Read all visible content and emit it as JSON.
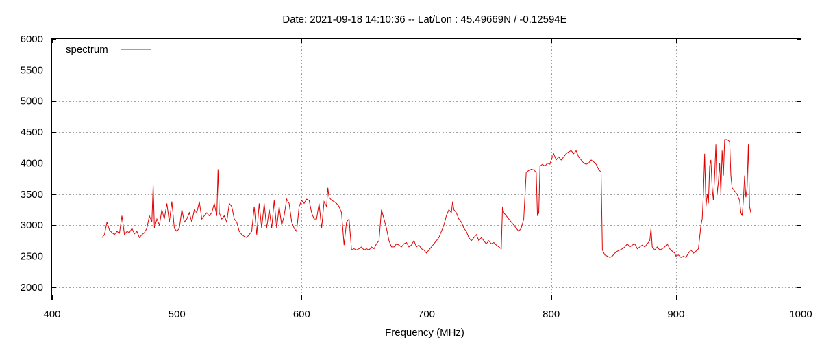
{
  "chart_data": {
    "type": "line",
    "title": "Date: 2021-09-18 14:10:36  --  Lat/Lon : 45.49669N / -0.12594E",
    "xlabel": "Frequency (MHz)",
    "ylabel": "",
    "xlim": [
      400,
      1000
    ],
    "ylim": [
      1800,
      6000
    ],
    "xticks": [
      400,
      500,
      600,
      700,
      800,
      900,
      1000
    ],
    "yticks": [
      2000,
      2500,
      3000,
      3500,
      4000,
      4500,
      5000,
      5500,
      6000
    ],
    "grid": true,
    "legend_position": "top-left",
    "colors": {
      "spectrum": "#e00000"
    },
    "series": [
      {
        "name": "spectrum",
        "points": [
          [
            440,
            2800
          ],
          [
            442,
            2850
          ],
          [
            444,
            3050
          ],
          [
            446,
            2920
          ],
          [
            448,
            2880
          ],
          [
            450,
            2850
          ],
          [
            452,
            2900
          ],
          [
            454,
            2870
          ],
          [
            456,
            3150
          ],
          [
            458,
            2850
          ],
          [
            460,
            2900
          ],
          [
            462,
            2880
          ],
          [
            464,
            2950
          ],
          [
            466,
            2860
          ],
          [
            468,
            2900
          ],
          [
            470,
            2800
          ],
          [
            472,
            2850
          ],
          [
            474,
            2880
          ],
          [
            476,
            2950
          ],
          [
            478,
            3150
          ],
          [
            480,
            3050
          ],
          [
            481,
            3650
          ],
          [
            482,
            2950
          ],
          [
            484,
            3100
          ],
          [
            486,
            3000
          ],
          [
            488,
            3250
          ],
          [
            490,
            3100
          ],
          [
            492,
            3350
          ],
          [
            494,
            3050
          ],
          [
            496,
            3380
          ],
          [
            498,
            2950
          ],
          [
            500,
            2900
          ],
          [
            502,
            2950
          ],
          [
            504,
            3250
          ],
          [
            506,
            3050
          ],
          [
            508,
            3100
          ],
          [
            510,
            3200
          ],
          [
            512,
            3050
          ],
          [
            514,
            3250
          ],
          [
            516,
            3200
          ],
          [
            518,
            3380
          ],
          [
            520,
            3100
          ],
          [
            522,
            3150
          ],
          [
            524,
            3200
          ],
          [
            526,
            3150
          ],
          [
            528,
            3200
          ],
          [
            530,
            3350
          ],
          [
            532,
            3150
          ],
          [
            533,
            3900
          ],
          [
            534,
            3200
          ],
          [
            536,
            3100
          ],
          [
            538,
            3150
          ],
          [
            540,
            3050
          ],
          [
            542,
            3350
          ],
          [
            544,
            3300
          ],
          [
            546,
            3100
          ],
          [
            548,
            3050
          ],
          [
            550,
            2900
          ],
          [
            552,
            2850
          ],
          [
            554,
            2820
          ],
          [
            556,
            2800
          ],
          [
            558,
            2850
          ],
          [
            560,
            2900
          ],
          [
            562,
            3300
          ],
          [
            564,
            2850
          ],
          [
            566,
            3350
          ],
          [
            568,
            2950
          ],
          [
            570,
            3350
          ],
          [
            572,
            2950
          ],
          [
            574,
            3250
          ],
          [
            576,
            2950
          ],
          [
            578,
            3400
          ],
          [
            580,
            2950
          ],
          [
            582,
            3300
          ],
          [
            584,
            3000
          ],
          [
            586,
            3150
          ],
          [
            588,
            3420
          ],
          [
            590,
            3350
          ],
          [
            592,
            3050
          ],
          [
            594,
            2950
          ],
          [
            596,
            2900
          ],
          [
            598,
            3300
          ],
          [
            600,
            3400
          ],
          [
            602,
            3350
          ],
          [
            604,
            3420
          ],
          [
            606,
            3400
          ],
          [
            608,
            3200
          ],
          [
            610,
            3100
          ],
          [
            612,
            3100
          ],
          [
            614,
            3350
          ],
          [
            616,
            2950
          ],
          [
            618,
            3380
          ],
          [
            620,
            3300
          ],
          [
            621,
            3600
          ],
          [
            622,
            3450
          ],
          [
            624,
            3400
          ],
          [
            626,
            3380
          ],
          [
            628,
            3350
          ],
          [
            630,
            3300
          ],
          [
            632,
            3200
          ],
          [
            634,
            2680
          ],
          [
            636,
            3050
          ],
          [
            638,
            3100
          ],
          [
            640,
            2600
          ],
          [
            642,
            2620
          ],
          [
            644,
            2600
          ],
          [
            646,
            2620
          ],
          [
            648,
            2650
          ],
          [
            650,
            2600
          ],
          [
            652,
            2620
          ],
          [
            654,
            2600
          ],
          [
            656,
            2650
          ],
          [
            658,
            2620
          ],
          [
            660,
            2700
          ],
          [
            662,
            2750
          ],
          [
            664,
            3250
          ],
          [
            666,
            3100
          ],
          [
            668,
            2950
          ],
          [
            670,
            2750
          ],
          [
            672,
            2650
          ],
          [
            674,
            2650
          ],
          [
            676,
            2700
          ],
          [
            678,
            2680
          ],
          [
            680,
            2650
          ],
          [
            682,
            2700
          ],
          [
            684,
            2720
          ],
          [
            686,
            2650
          ],
          [
            688,
            2680
          ],
          [
            690,
            2750
          ],
          [
            692,
            2650
          ],
          [
            694,
            2680
          ],
          [
            696,
            2620
          ],
          [
            698,
            2600
          ],
          [
            700,
            2550
          ],
          [
            702,
            2600
          ],
          [
            704,
            2650
          ],
          [
            706,
            2700
          ],
          [
            708,
            2750
          ],
          [
            710,
            2800
          ],
          [
            712,
            2900
          ],
          [
            714,
            3000
          ],
          [
            716,
            3150
          ],
          [
            718,
            3250
          ],
          [
            720,
            3200
          ],
          [
            721,
            3380
          ],
          [
            722,
            3250
          ],
          [
            724,
            3200
          ],
          [
            726,
            3100
          ],
          [
            728,
            3050
          ],
          [
            730,
            2950
          ],
          [
            732,
            2900
          ],
          [
            734,
            2800
          ],
          [
            736,
            2750
          ],
          [
            738,
            2800
          ],
          [
            740,
            2850
          ],
          [
            742,
            2750
          ],
          [
            744,
            2800
          ],
          [
            746,
            2750
          ],
          [
            748,
            2700
          ],
          [
            750,
            2750
          ],
          [
            752,
            2700
          ],
          [
            754,
            2720
          ],
          [
            756,
            2680
          ],
          [
            758,
            2650
          ],
          [
            760,
            2620
          ],
          [
            761,
            3300
          ],
          [
            762,
            3200
          ],
          [
            764,
            3150
          ],
          [
            766,
            3100
          ],
          [
            768,
            3050
          ],
          [
            770,
            3000
          ],
          [
            772,
            2950
          ],
          [
            774,
            2900
          ],
          [
            776,
            2950
          ],
          [
            778,
            3100
          ],
          [
            780,
            3850
          ],
          [
            782,
            3880
          ],
          [
            784,
            3900
          ],
          [
            786,
            3890
          ],
          [
            788,
            3850
          ],
          [
            789,
            3150
          ],
          [
            790,
            3200
          ],
          [
            791,
            3950
          ],
          [
            793,
            3980
          ],
          [
            795,
            3950
          ],
          [
            797,
            4000
          ],
          [
            799,
            3980
          ],
          [
            800,
            4050
          ],
          [
            802,
            4150
          ],
          [
            804,
            4050
          ],
          [
            806,
            4100
          ],
          [
            808,
            4050
          ],
          [
            810,
            4100
          ],
          [
            812,
            4150
          ],
          [
            814,
            4180
          ],
          [
            816,
            4200
          ],
          [
            818,
            4150
          ],
          [
            820,
            4200
          ],
          [
            822,
            4100
          ],
          [
            824,
            4050
          ],
          [
            826,
            4000
          ],
          [
            828,
            3980
          ],
          [
            830,
            4000
          ],
          [
            832,
            4050
          ],
          [
            834,
            4020
          ],
          [
            836,
            3980
          ],
          [
            838,
            3900
          ],
          [
            840,
            3850
          ],
          [
            841,
            2600
          ],
          [
            843,
            2520
          ],
          [
            845,
            2500
          ],
          [
            847,
            2480
          ],
          [
            849,
            2500
          ],
          [
            851,
            2550
          ],
          [
            853,
            2580
          ],
          [
            855,
            2600
          ],
          [
            857,
            2620
          ],
          [
            859,
            2650
          ],
          [
            861,
            2700
          ],
          [
            863,
            2650
          ],
          [
            865,
            2680
          ],
          [
            867,
            2700
          ],
          [
            869,
            2620
          ],
          [
            871,
            2650
          ],
          [
            873,
            2680
          ],
          [
            875,
            2650
          ],
          [
            877,
            2700
          ],
          [
            879,
            2750
          ],
          [
            880,
            2950
          ],
          [
            881,
            2650
          ],
          [
            883,
            2600
          ],
          [
            885,
            2650
          ],
          [
            887,
            2600
          ],
          [
            889,
            2620
          ],
          [
            891,
            2650
          ],
          [
            893,
            2700
          ],
          [
            895,
            2620
          ],
          [
            897,
            2580
          ],
          [
            899,
            2550
          ],
          [
            900,
            2500
          ],
          [
            902,
            2520
          ],
          [
            904,
            2480
          ],
          [
            906,
            2500
          ],
          [
            908,
            2480
          ],
          [
            910,
            2550
          ],
          [
            912,
            2600
          ],
          [
            914,
            2550
          ],
          [
            916,
            2580
          ],
          [
            918,
            2620
          ],
          [
            920,
            3000
          ],
          [
            921,
            3100
          ],
          [
            922,
            3500
          ],
          [
            923,
            4150
          ],
          [
            924,
            3300
          ],
          [
            925,
            3500
          ],
          [
            926,
            3350
          ],
          [
            927,
            3950
          ],
          [
            928,
            4050
          ],
          [
            929,
            3600
          ],
          [
            930,
            3400
          ],
          [
            931,
            3800
          ],
          [
            932,
            4300
          ],
          [
            933,
            3500
          ],
          [
            934,
            3700
          ],
          [
            935,
            4000
          ],
          [
            936,
            3500
          ],
          [
            937,
            4200
          ],
          [
            938,
            3800
          ],
          [
            939,
            4380
          ],
          [
            941,
            4380
          ],
          [
            943,
            4350
          ],
          [
            944,
            3800
          ],
          [
            945,
            3600
          ],
          [
            947,
            3550
          ],
          [
            949,
            3500
          ],
          [
            951,
            3400
          ],
          [
            952,
            3200
          ],
          [
            953,
            3150
          ],
          [
            954,
            3400
          ],
          [
            955,
            3800
          ],
          [
            956,
            3450
          ],
          [
            957,
            3600
          ],
          [
            958,
            4300
          ],
          [
            959,
            3300
          ],
          [
            960,
            3200
          ]
        ]
      }
    ]
  }
}
